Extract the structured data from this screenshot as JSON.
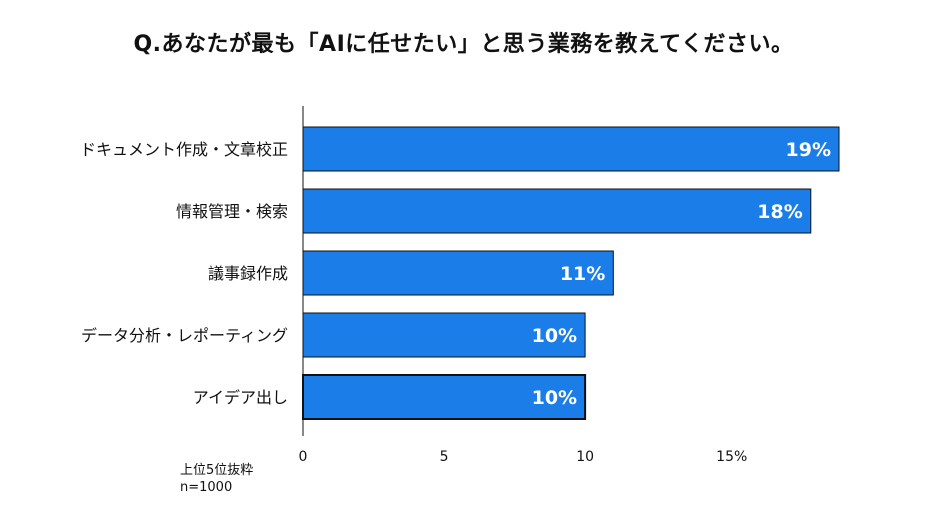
{
  "title": "Q.あなたが最も「AIに任せたい」と思う業務を教えてください。",
  "footnote": {
    "line1": "上位5位抜粋",
    "line2": "n=1000"
  },
  "colors": {
    "bar": "#1a7de8",
    "bar_border": "#111111",
    "label_on_bar": "#ffffff",
    "axis": "#111111"
  },
  "chart_data": {
    "type": "bar",
    "orientation": "horizontal",
    "categories": [
      "ドキュメント作成・文章校正",
      "情報管理・検索",
      "議事録作成",
      "データ分析・レポーティング",
      "アイデア出し"
    ],
    "values": [
      19,
      18,
      11,
      10,
      10
    ],
    "data_labels": [
      "19%",
      "18%",
      "11%",
      "10%",
      "10%"
    ],
    "xlim": [
      0,
      19
    ],
    "x_ticks": [
      0,
      5,
      10,
      15
    ],
    "x_tick_labels": [
      "0",
      "5",
      "10",
      "15%"
    ],
    "grid": false,
    "legend": "none"
  }
}
